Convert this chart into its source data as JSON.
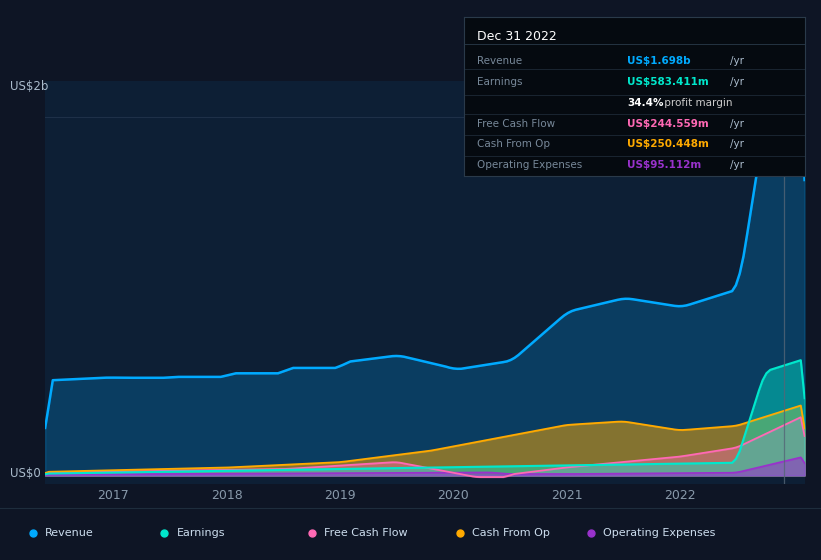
{
  "bg_color": "#0e1525",
  "plot_bg_color": "#0d1f35",
  "title": "Dec 31 2022",
  "ylabel": "US$2b",
  "y0label": "US$0",
  "legend": [
    {
      "label": "Revenue",
      "color": "#00aaff"
    },
    {
      "label": "Earnings",
      "color": "#00e8cc"
    },
    {
      "label": "Free Cash Flow",
      "color": "#ff69b4"
    },
    {
      "label": "Cash From Op",
      "color": "#ffaa00"
    },
    {
      "label": "Operating Expenses",
      "color": "#9932cc"
    }
  ],
  "xticklabels": [
    "2017",
    "2018",
    "2019",
    "2020",
    "2021",
    "2022"
  ],
  "revenue_color": "#00aaff",
  "earnings_color": "#00e8cc",
  "fcf_color": "#ff69b4",
  "cashop_color": "#ffaa00",
  "opex_color": "#9932cc",
  "tooltip_bg": "#050a10",
  "tooltip_border": "#2a3a4a",
  "tooltip_header": "Dec 31 2022",
  "tooltip_rows": [
    {
      "label": "Revenue",
      "amt": "US$1.698b",
      "unit": "/yr",
      "color": "#00aaff"
    },
    {
      "label": "Earnings",
      "amt": "US$583.411m",
      "unit": "/yr",
      "color": "#00e8cc"
    },
    {
      "label": "",
      "amt": "34.4%",
      "unit": " profit margin",
      "color": "#ffffff"
    },
    {
      "label": "Free Cash Flow",
      "amt": "US$244.559m",
      "unit": "/yr",
      "color": "#ff69b4"
    },
    {
      "label": "Cash From Op",
      "amt": "US$250.448m",
      "unit": "/yr",
      "color": "#ffaa00"
    },
    {
      "label": "Operating Expenses",
      "amt": "US$95.112m",
      "unit": "/yr",
      "color": "#9932cc"
    }
  ]
}
